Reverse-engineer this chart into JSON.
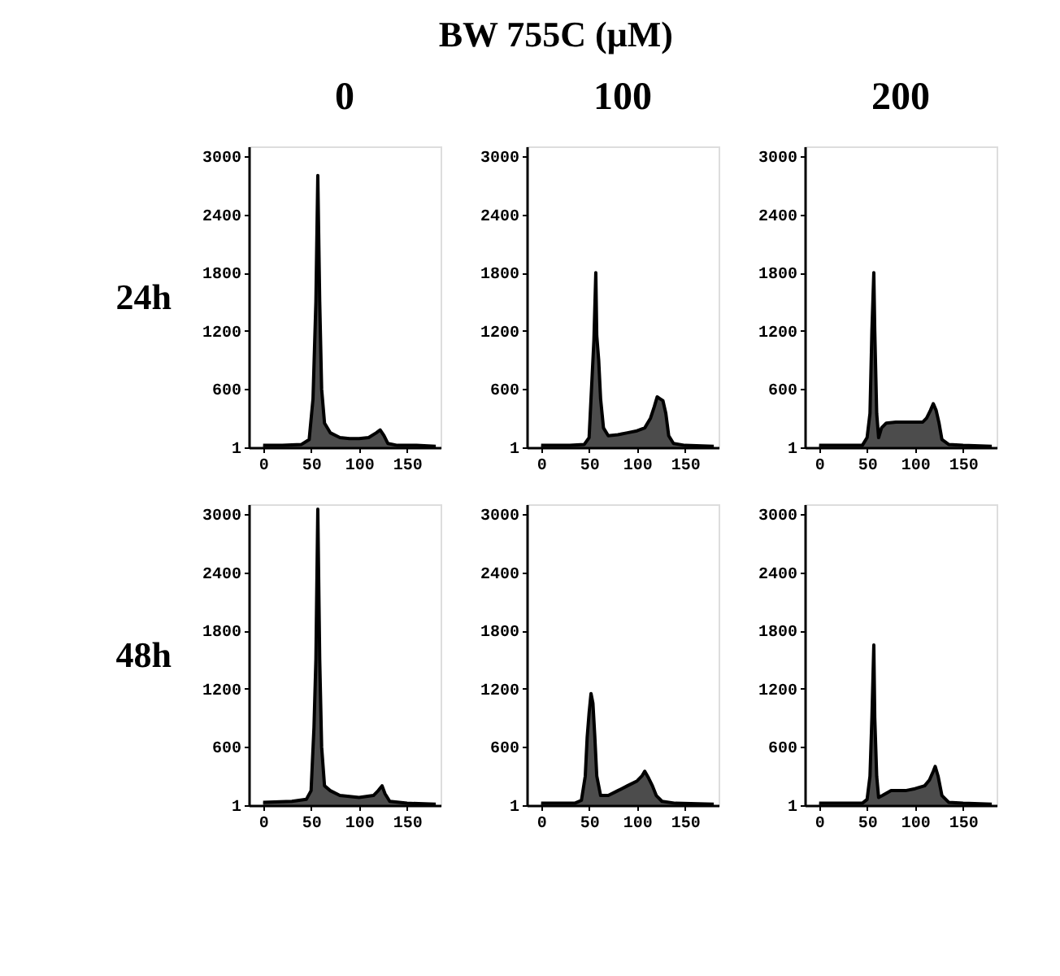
{
  "chart_data": [
    {
      "type": "area",
      "title": "0",
      "ylabel": "24h",
      "annotations": [
        "BW 755C (μM)"
      ],
      "x": [
        0,
        20,
        40,
        48,
        52,
        55,
        57,
        59,
        61,
        64,
        70,
        80,
        90,
        100,
        110,
        118,
        122,
        126,
        130,
        140,
        160,
        180
      ],
      "series": [
        {
          "color": "#000000",
          "values": [
            20,
            20,
            30,
            80,
            500,
            1500,
            2800,
            1500,
            600,
            250,
            150,
            100,
            90,
            90,
            100,
            150,
            180,
            120,
            40,
            20,
            20,
            10
          ]
        }
      ],
      "xlim": [
        -15,
        185
      ],
      "xticks": [
        0,
        50,
        100,
        150
      ],
      "ylim": [
        0,
        3100
      ],
      "yticks": [
        1,
        600,
        1200,
        1800,
        2400,
        3000
      ]
    },
    {
      "type": "area",
      "title": "100",
      "x": [
        0,
        30,
        45,
        50,
        53,
        55,
        57,
        58,
        60,
        62,
        65,
        70,
        80,
        90,
        100,
        108,
        114,
        118,
        121,
        124,
        127,
        130,
        133,
        138,
        150,
        180
      ],
      "series": [
        {
          "color": "#000000",
          "values": [
            20,
            20,
            30,
            100,
            700,
            1100,
            1800,
            1150,
            900,
            500,
            200,
            120,
            130,
            150,
            170,
            200,
            300,
            420,
            520,
            500,
            480,
            350,
            120,
            40,
            20,
            10
          ]
        }
      ],
      "xlim": [
        -15,
        185
      ],
      "xticks": [
        0,
        50,
        100,
        150
      ],
      "ylim": [
        0,
        3100
      ],
      "yticks": [
        1,
        600,
        1200,
        1800,
        2400,
        3000
      ]
    },
    {
      "type": "area",
      "title": "200",
      "x": [
        0,
        45,
        50,
        53,
        55,
        57,
        58,
        60,
        62,
        65,
        70,
        80,
        90,
        100,
        108,
        112,
        116,
        119,
        122,
        125,
        128,
        135,
        150,
        180
      ],
      "series": [
        {
          "color": "#000000",
          "values": [
            20,
            20,
            100,
            350,
            1200,
            1800,
            1200,
            350,
            100,
            200,
            250,
            260,
            260,
            260,
            260,
            300,
            380,
            450,
            380,
            250,
            80,
            30,
            20,
            10
          ]
        }
      ],
      "xlim": [
        -15,
        185
      ],
      "xticks": [
        0,
        50,
        100,
        150
      ],
      "ylim": [
        0,
        3100
      ],
      "yticks": [
        1,
        600,
        1200,
        1800,
        2400,
        3000
      ]
    },
    {
      "type": "area",
      "ylabel": "48h",
      "x": [
        0,
        30,
        45,
        50,
        53,
        55,
        57,
        59,
        61,
        64,
        70,
        80,
        100,
        115,
        120,
        124,
        127,
        132,
        150,
        180
      ],
      "series": [
        {
          "color": "#000000",
          "values": [
            30,
            40,
            60,
            150,
            800,
            1500,
            3050,
            1500,
            600,
            200,
            150,
            100,
            80,
            100,
            150,
            200,
            120,
            40,
            20,
            10
          ]
        }
      ],
      "xlim": [
        -15,
        185
      ],
      "xticks": [
        0,
        50,
        100,
        150
      ],
      "ylim": [
        0,
        3100
      ],
      "yticks": [
        1,
        600,
        1200,
        1800,
        2400,
        3000
      ]
    },
    {
      "type": "area",
      "x": [
        0,
        35,
        42,
        46,
        48,
        50,
        52,
        54,
        56,
        58,
        62,
        70,
        80,
        90,
        100,
        105,
        108,
        112,
        116,
        120,
        126,
        140,
        180
      ],
      "series": [
        {
          "color": "#000000",
          "values": [
            20,
            20,
            50,
            300,
            700,
            950,
            1150,
            1050,
            700,
            300,
            100,
            100,
            150,
            200,
            250,
            300,
            350,
            280,
            200,
            100,
            40,
            20,
            10
          ]
        }
      ],
      "xlim": [
        -15,
        185
      ],
      "xticks": [
        0,
        50,
        100,
        150
      ],
      "ylim": [
        0,
        3100
      ],
      "yticks": [
        1,
        600,
        1200,
        1800,
        2400,
        3000
      ]
    },
    {
      "type": "area",
      "x": [
        0,
        45,
        50,
        53,
        55,
        57,
        58,
        60,
        62,
        66,
        75,
        90,
        100,
        110,
        115,
        119,
        121,
        124,
        128,
        135,
        150,
        180
      ],
      "series": [
        {
          "color": "#000000",
          "values": [
            20,
            20,
            60,
            300,
            900,
            1650,
            900,
            300,
            80,
            100,
            150,
            150,
            170,
            200,
            260,
            350,
            400,
            300,
            100,
            30,
            20,
            10
          ]
        }
      ],
      "xlim": [
        -15,
        185
      ],
      "xticks": [
        0,
        50,
        100,
        150
      ],
      "ylim": [
        0,
        3100
      ],
      "yticks": [
        1,
        600,
        1200,
        1800,
        2400,
        3000
      ]
    }
  ]
}
